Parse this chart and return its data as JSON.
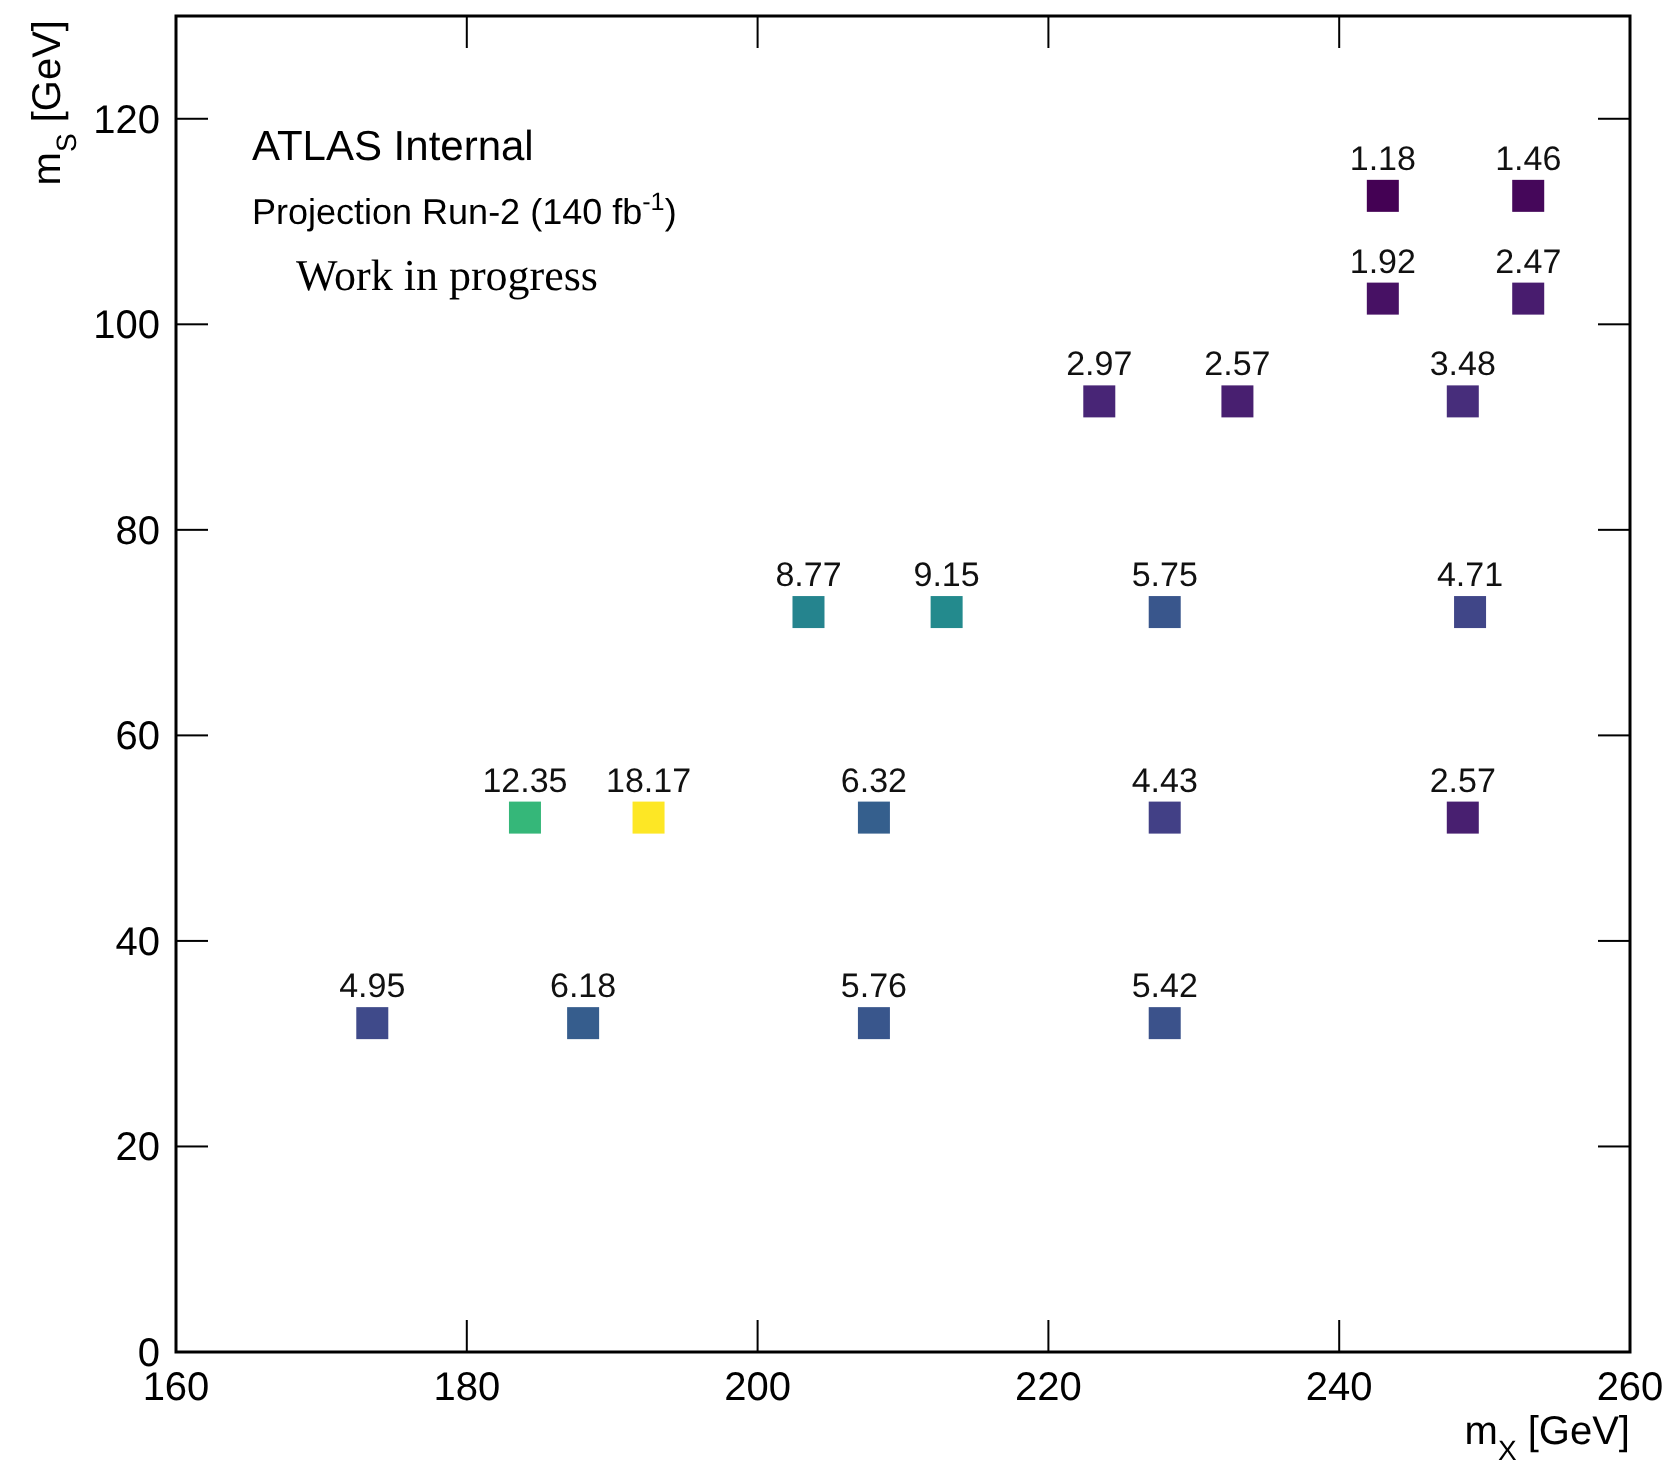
{
  "chart_data": {
    "type": "scatter",
    "xlabel": "m$_{X}$ [GeV]",
    "ylabel": "m$_{S}$ [GeV]",
    "annotations": [
      "ATLAS Internal",
      "Projection Run-2 (140 fb$^{-1}$)",
      "Work in progress",
      {
        "text": "4.95",
        "x": 173.5,
        "y": 32
      },
      {
        "text": "6.18",
        "x": 188,
        "y": 32
      },
      {
        "text": "5.76",
        "x": 208,
        "y": 32
      },
      {
        "text": "5.42",
        "x": 228,
        "y": 32
      },
      {
        "text": "12.35",
        "x": 184,
        "y": 52
      },
      {
        "text": "18.17",
        "x": 192.5,
        "y": 52
      },
      {
        "text": "6.32",
        "x": 208,
        "y": 52
      },
      {
        "text": "4.43",
        "x": 228,
        "y": 52
      },
      {
        "text": "2.57",
        "x": 248.5,
        "y": 52
      },
      {
        "text": "8.77",
        "x": 203.5,
        "y": 72
      },
      {
        "text": "9.15",
        "x": 213,
        "y": 72
      },
      {
        "text": "5.75",
        "x": 228,
        "y": 72
      },
      {
        "text": "4.71",
        "x": 249,
        "y": 72
      },
      {
        "text": "2.97",
        "x": 223.5,
        "y": 92.5
      },
      {
        "text": "2.57",
        "x": 233,
        "y": 92.5
      },
      {
        "text": "3.48",
        "x": 248.5,
        "y": 92.5
      },
      {
        "text": "1.92",
        "x": 243,
        "y": 102.5
      },
      {
        "text": "2.47",
        "x": 253,
        "y": 102.5
      },
      {
        "text": "1.18",
        "x": 243,
        "y": 112.5
      },
      {
        "text": "1.46",
        "x": 253,
        "y": 112.5
      }
    ],
    "x": [
      173.5,
      188,
      208,
      228,
      184,
      192.5,
      208,
      228,
      248.5,
      203.5,
      213,
      228,
      249,
      223.5,
      233,
      248.5,
      243,
      253,
      243,
      253
    ],
    "values": [
      32,
      32,
      32,
      32,
      52,
      52,
      52,
      52,
      52,
      72,
      72,
      72,
      72,
      92.5,
      92.5,
      92.5,
      102.5,
      102.5,
      112.5,
      112.5
    ],
    "colors": [
      "#3f4a8a",
      "#365d8d",
      "#39568c",
      "#3b528b",
      "#35b779",
      "#fde725",
      "#355f8d",
      "#424086",
      "#481f70",
      "#25848e",
      "#238a8d",
      "#39568c",
      "#404688",
      "#482576",
      "#481f70",
      "#472d7b",
      "#471164",
      "#481c6e",
      "#440154",
      "#45075a"
    ],
    "marker": "square",
    "xlim": [
      160,
      260
    ],
    "xticks": [
      160,
      180,
      200,
      220,
      240,
      260
    ],
    "ylim": [
      0,
      130
    ],
    "yticks": [
      0,
      20,
      40,
      60,
      80,
      100,
      120
    ]
  }
}
